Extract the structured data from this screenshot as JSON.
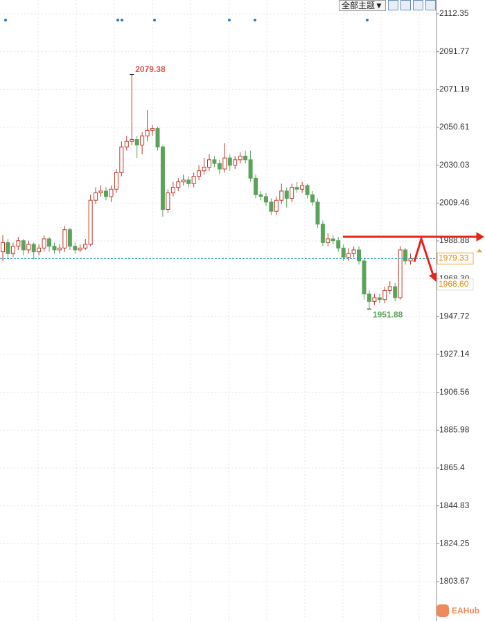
{
  "toolbar_label": "全部主题▼",
  "watermark": "EAHub",
  "chart_data": {
    "type": "candlestick",
    "ylim": [
      1782.21,
      2119.88
    ],
    "yticks": [
      2112.35,
      2091.77,
      2071.19,
      2050.61,
      2030.03,
      2009.46,
      1988.88,
      {
        "value": 1968.3,
        "label": "1968.30"
      },
      1947.72,
      1927.14,
      1906.56,
      1885.98,
      1865.4,
      1844.83,
      1824.25,
      1803.67
    ],
    "grid": true,
    "up_color": "#c0392b",
    "down_color": "#5ba35b",
    "open": [
      1983,
      1988,
      1982,
      1986,
      1989,
      1984,
      1987,
      1983,
      1985,
      1990,
      1986,
      1984,
      1985,
      1995,
      1986,
      1984,
      1985,
      1987,
      2011,
      2015,
      2016,
      2013,
      2017,
      2026,
      2040,
      2043,
      2044,
      2041,
      2046,
      2049,
      2050,
      2040,
      2006,
      2015,
      2018,
      2021,
      2022,
      2020,
      2024,
      2027,
      2029,
      2033,
      2031,
      2028,
      2034,
      2030,
      2033,
      2035,
      2033,
      2023,
      2014,
      2013,
      2010,
      2005,
      2011,
      2016,
      2012,
      2018,
      2017,
      2019,
      2014,
      2010,
      1998,
      1988,
      1990,
      1989,
      1985,
      1980,
      1982,
      1984,
      1978,
      1960,
      1956,
      1958,
      1957,
      1962,
      1964,
      1958,
      1984,
      1978
    ],
    "high": [
      1992,
      1990,
      1988,
      1991,
      1990,
      1989,
      1988,
      1987,
      1992,
      1991,
      1988,
      1987,
      1997,
      1996,
      1988,
      1987,
      1990,
      2014,
      2018,
      2019,
      2018,
      2019,
      2028,
      2043,
      2046,
      2079.38,
      2046,
      2048,
      2060,
      2052,
      2051,
      2041,
      2017,
      2021,
      2023,
      2025,
      2024,
      2026,
      2030,
      2034,
      2036,
      2035,
      2033,
      2042,
      2036,
      2035,
      2037,
      2038,
      2038,
      2025,
      2016,
      2015,
      2012,
      2013,
      2020,
      2018,
      2020,
      2021,
      2021,
      2020,
      2016,
      2012,
      2000,
      1993,
      1992,
      1991,
      1987,
      1985,
      1986,
      1986,
      1980,
      1962,
      1960,
      1960,
      1964,
      1967,
      1966,
      1986,
      1985,
      1982
    ],
    "low": [
      1978,
      1979,
      1980,
      1984,
      1981,
      1982,
      1979,
      1981,
      1983,
      1983,
      1982,
      1982,
      1983,
      1984,
      1982,
      1983,
      1984,
      1986,
      2009,
      2013,
      2011,
      2010,
      2015,
      2024,
      2038,
      2041,
      2034,
      2036,
      2043,
      2046,
      2038,
      2002,
      2004,
      2013,
      2016,
      2019,
      2018,
      2018,
      2022,
      2025,
      2027,
      2029,
      2025,
      2026,
      2027,
      2028,
      2031,
      2031,
      2021,
      2012,
      2011,
      2008,
      2003,
      2003,
      2009,
      2007,
      2010,
      2015,
      2015,
      2012,
      2008,
      1996,
      1986,
      1986,
      1987,
      1983,
      1978,
      1978,
      1980,
      1976,
      1957,
      1951.88,
      1954,
      1955,
      1955,
      1960,
      1956,
      1957,
      1976,
      1976
    ],
    "close": [
      1988,
      1982,
      1986,
      1989,
      1984,
      1987,
      1983,
      1985,
      1990,
      1986,
      1984,
      1985,
      1995,
      1986,
      1984,
      1985,
      1987,
      2011,
      2015,
      2016,
      2013,
      2017,
      2026,
      2040,
      2043,
      2044,
      2041,
      2046,
      2049,
      2050,
      2040,
      2006,
      2015,
      2018,
      2021,
      2022,
      2020,
      2024,
      2027,
      2029,
      2033,
      2031,
      2028,
      2034,
      2030,
      2033,
      2035,
      2033,
      2023,
      2014,
      2013,
      2010,
      2005,
      2011,
      2016,
      2012,
      2018,
      2017,
      2019,
      2014,
      2010,
      1998,
      1988,
      1990,
      1989,
      1985,
      1980,
      1982,
      1984,
      1978,
      1960,
      1956,
      1958,
      1957,
      1962,
      1964,
      1958,
      1984,
      1978,
      1979.33
    ],
    "price_labels": [
      {
        "value": 1968.6,
        "label": "1968.60"
      }
    ]
  }
}
